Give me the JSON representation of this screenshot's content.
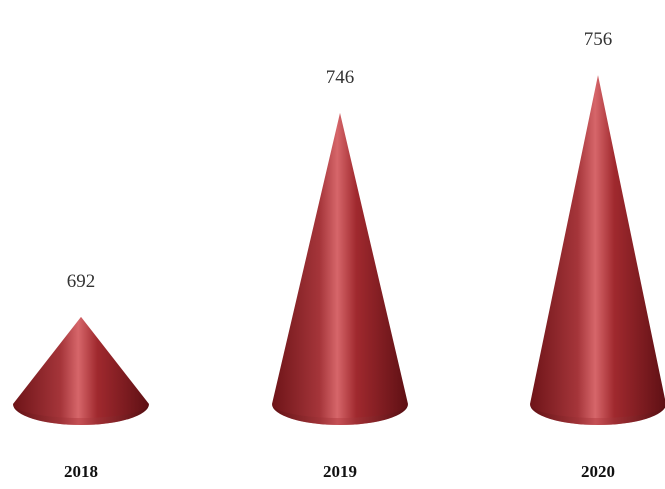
{
  "chart_data": {
    "type": "bar",
    "mark_shape": "cone",
    "categories": [
      "2018",
      "2019",
      "2020"
    ],
    "values": [
      692,
      746,
      756
    ],
    "data_labels": [
      "692",
      "746",
      "756"
    ],
    "title": "",
    "xlabel": "",
    "ylabel": "",
    "ylim": [
      670,
      760
    ],
    "grid": false,
    "legend": "none",
    "colors": {
      "cone_base": "#9e2a2e",
      "cone_dark": "#6e1418",
      "cone_light": "#d6666a",
      "value_label": "#333333",
      "category_label": "#111111"
    }
  }
}
